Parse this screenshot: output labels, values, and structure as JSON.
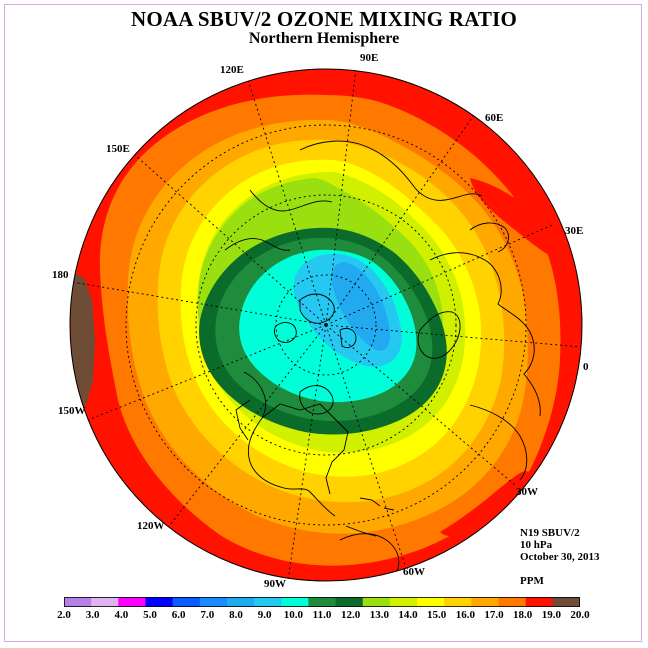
{
  "title": "NOAA SBUV/2 OZONE MIXING RATIO",
  "subtitle": "Northern Hemisphere",
  "longitude_labels": [
    "90E",
    "60E",
    "30E",
    "0",
    "30W",
    "60W",
    "90W",
    "120W",
    "150W",
    "180",
    "150E",
    "120E"
  ],
  "info": {
    "instrument": "N19 SBUV/2",
    "pressure": "10 hPa",
    "date": "October 30, 2013",
    "units": "PPM"
  },
  "colorbar": {
    "ticks": [
      "2.0",
      "3.0",
      "4.0",
      "5.0",
      "6.0",
      "7.0",
      "8.0",
      "9.0",
      "10.0",
      "11.0",
      "12.0",
      "13.0",
      "14.0",
      "15.0",
      "16.0",
      "17.0",
      "18.0",
      "19.0",
      "20.0"
    ],
    "colors": [
      "#b77fe8",
      "#dfb3f2",
      "#ff00ff",
      "#0000ff",
      "#0a5cff",
      "#1a8cff",
      "#22aaf0",
      "#25c8f0",
      "#00ffd8",
      "#1e8c3c",
      "#0b6b2a",
      "#9ae010",
      "#d0f000",
      "#ffff00",
      "#ffd200",
      "#ffa800",
      "#ff7800",
      "#ff1200",
      "#6e4c36"
    ]
  },
  "map_colors": {
    "band_18_19": "#ff1200",
    "band_17_18": "#ff7800",
    "band_16_17": "#ffa800",
    "band_15_16": "#ffd200",
    "band_14_15": "#ffff00",
    "band_13_14": "#d0f000",
    "band_12_13": "#9ae010",
    "band_11_12": "#0b6b2a",
    "band_10_11": "#1e8c3c",
    "band_9_10": "#00ffd8",
    "band_8_9": "#25c8f0",
    "band_7_8": "#22aaf0",
    "band_19_20": "#6e4c36"
  }
}
